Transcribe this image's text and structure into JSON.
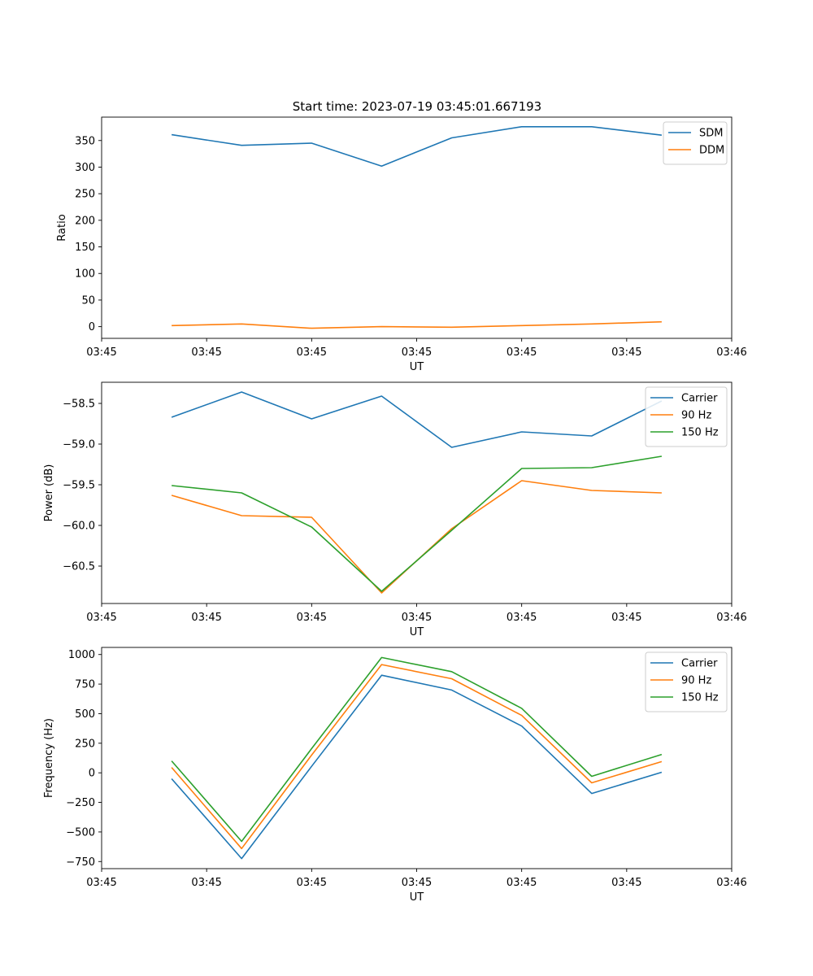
{
  "figure": {
    "title": "Start time: 2023-07-19 03:45:01.667193"
  },
  "colors": {
    "blue": "#1f77b4",
    "orange": "#ff7f0e",
    "green": "#2ca02c"
  },
  "chart_data": [
    {
      "type": "line",
      "title": "Start time: 2023-07-19 03:45:01.667193",
      "xlabel": "UT",
      "ylabel": "Ratio",
      "x": [
        1,
        2,
        3,
        4,
        5,
        6,
        7,
        8
      ],
      "xlim": [
        0,
        9
      ],
      "ylim": [
        -22,
        394
      ],
      "xticks": [
        0,
        1.5,
        3,
        4.5,
        6,
        7.5,
        9
      ],
      "xtick_labels": [
        "03:45",
        "03:45",
        "03:45",
        "03:45",
        "03:45",
        "03:45",
        "03:46"
      ],
      "yticks": [
        0,
        50,
        100,
        150,
        200,
        250,
        300,
        350
      ],
      "ytick_labels": [
        "0",
        "50",
        "100",
        "150",
        "200",
        "250",
        "300",
        "350"
      ],
      "legend": "top-right",
      "series": [
        {
          "name": "SDM",
          "color": "#1f77b4",
          "values": [
            361,
            341,
            345,
            302,
            355,
            376,
            376,
            360
          ]
        },
        {
          "name": "DDM",
          "color": "#ff7f0e",
          "values": [
            2,
            5,
            -3,
            0,
            -1,
            2,
            5,
            9
          ]
        }
      ]
    },
    {
      "type": "line",
      "title": "",
      "xlabel": "UT",
      "ylabel": "Power (dB)",
      "x": [
        1,
        2,
        3,
        4,
        5,
        6,
        7,
        8
      ],
      "xlim": [
        0,
        9
      ],
      "ylim": [
        -60.96,
        -58.24
      ],
      "xticks": [
        0,
        1.5,
        3,
        4.5,
        6,
        7.5,
        9
      ],
      "xtick_labels": [
        "03:45",
        "03:45",
        "03:45",
        "03:45",
        "03:45",
        "03:45",
        "03:46"
      ],
      "yticks": [
        -60.5,
        -60.0,
        -59.5,
        -59.0,
        -58.5
      ],
      "ytick_labels": [
        "−60.5",
        "−60.0",
        "−59.5",
        "−59.0",
        "−58.5"
      ],
      "legend": "top-right",
      "series": [
        {
          "name": "Carrier",
          "color": "#1f77b4",
          "values": [
            -58.67,
            -58.36,
            -58.69,
            -58.41,
            -59.04,
            -58.85,
            -58.9,
            -58.47
          ]
        },
        {
          "name": "90 Hz",
          "color": "#ff7f0e",
          "values": [
            -59.63,
            -59.88,
            -59.9,
            -60.83,
            -60.04,
            -59.45,
            -59.57,
            -59.6
          ]
        },
        {
          "name": "150 Hz",
          "color": "#2ca02c",
          "values": [
            -59.51,
            -59.6,
            -60.02,
            -60.81,
            -60.06,
            -59.3,
            -59.29,
            -59.15
          ]
        }
      ]
    },
    {
      "type": "line",
      "title": "",
      "xlabel": "UT",
      "ylabel": "Frequency (Hz)",
      "x": [
        1,
        2,
        3,
        4,
        5,
        6,
        7,
        8
      ],
      "xlim": [
        0,
        9
      ],
      "ylim": [
        -810,
        1060
      ],
      "xticks": [
        0,
        1.5,
        3,
        4.5,
        6,
        7.5,
        9
      ],
      "xtick_labels": [
        "03:45",
        "03:45",
        "03:45",
        "03:45",
        "03:45",
        "03:45",
        "03:46"
      ],
      "yticks": [
        -750,
        -500,
        -250,
        0,
        250,
        500,
        750,
        1000
      ],
      "ytick_labels": [
        "−750",
        "−500",
        "−250",
        "0",
        "250",
        "500",
        "750",
        "1000"
      ],
      "legend": "top-right",
      "series": [
        {
          "name": "Carrier",
          "color": "#1f77b4",
          "values": [
            -50,
            -725,
            55,
            825,
            700,
            395,
            -175,
            5
          ]
        },
        {
          "name": "90 Hz",
          "color": "#ff7f0e",
          "values": [
            45,
            -640,
            150,
            915,
            795,
            485,
            -85,
            95
          ]
        },
        {
          "name": "150 Hz",
          "color": "#2ca02c",
          "values": [
            100,
            -580,
            205,
            975,
            855,
            545,
            -30,
            155
          ]
        }
      ]
    }
  ]
}
